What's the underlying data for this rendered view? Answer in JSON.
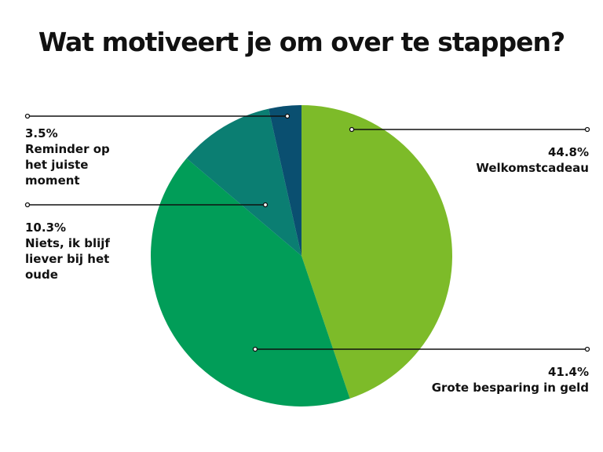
{
  "chart_data": {
    "type": "pie",
    "title": "Wat motiveert je om over te stappen?",
    "categories": [
      "Welkomstcadeau",
      "Grote besparing in geld",
      "Niets, ik blijf liever bij het oude",
      "Reminder op het juiste moment"
    ],
    "values": [
      44.8,
      41.4,
      10.3,
      3.5
    ],
    "value_labels": [
      "44.8%",
      "41.4%",
      "10.3%",
      "3.5%"
    ],
    "colors": [
      "#7dbb29",
      "#019d58",
      "#0b7e72",
      "#0a4f70"
    ]
  }
}
